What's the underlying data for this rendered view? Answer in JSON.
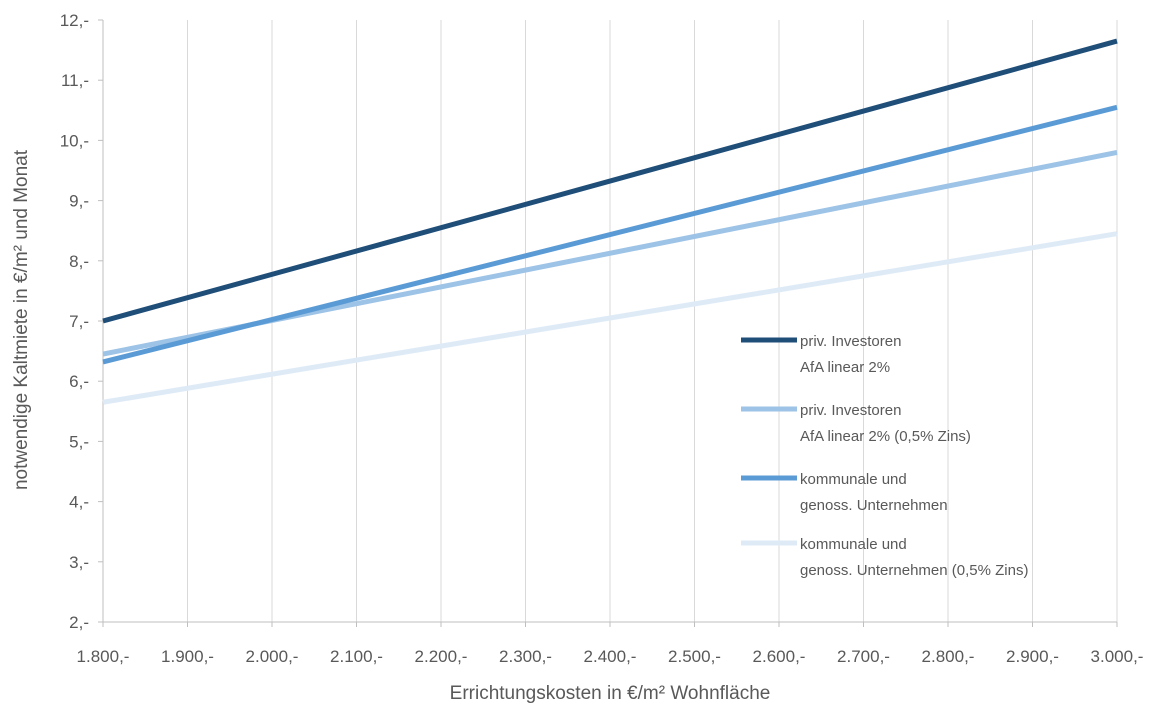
{
  "chart_data": {
    "type": "line",
    "xlabel": "Errichtungskosten in €/m² Wohnfläche",
    "ylabel": "notwendige Kaltmiete in €/m² und Monat",
    "xlim": [
      1800,
      3000
    ],
    "ylim": [
      2,
      12
    ],
    "x_ticks": [
      1800,
      1900,
      2000,
      2100,
      2200,
      2300,
      2400,
      2500,
      2600,
      2700,
      2800,
      2900,
      3000
    ],
    "x_tick_labels": [
      "1.800,-",
      "1.900,-",
      "2.000,-",
      "2.100,-",
      "2.200,-",
      "2.300,-",
      "2.400,-",
      "2.500,-",
      "2.600,-",
      "2.700,-",
      "2.800,-",
      "2.900,-",
      "3.000,-"
    ],
    "y_ticks": [
      2,
      3,
      4,
      5,
      6,
      7,
      8,
      9,
      10,
      11,
      12
    ],
    "y_tick_labels": [
      "2,-",
      "3,-",
      "4,-",
      "5,-",
      "6,-",
      "7,-",
      "8,-",
      "9,-",
      "10,-",
      "11,-",
      "12,-"
    ],
    "grid": {
      "x": true,
      "y": false
    },
    "legend_position": "right",
    "series": [
      {
        "name_lines": [
          "priv. Investoren",
          "AfA linear 2%"
        ],
        "color": "#1f4e79",
        "x": [
          1800,
          3000
        ],
        "y": [
          7.0,
          11.65
        ]
      },
      {
        "name_lines": [
          "priv. Investoren",
          "AfA linear 2% (0,5% Zins)"
        ],
        "color": "#9dc3e6",
        "x": [
          1800,
          3000
        ],
        "y": [
          6.45,
          9.8
        ]
      },
      {
        "name_lines": [
          "kommunale und",
          "genoss. Unternehmen"
        ],
        "color": "#5b9bd5",
        "x": [
          1800,
          3000
        ],
        "y": [
          6.32,
          10.55
        ]
      },
      {
        "name_lines": [
          "kommunale und",
          "genoss. Unternehmen (0,5% Zins)"
        ],
        "color": "#deebf7",
        "x": [
          1800,
          3000
        ],
        "y": [
          5.65,
          8.45
        ]
      }
    ]
  }
}
